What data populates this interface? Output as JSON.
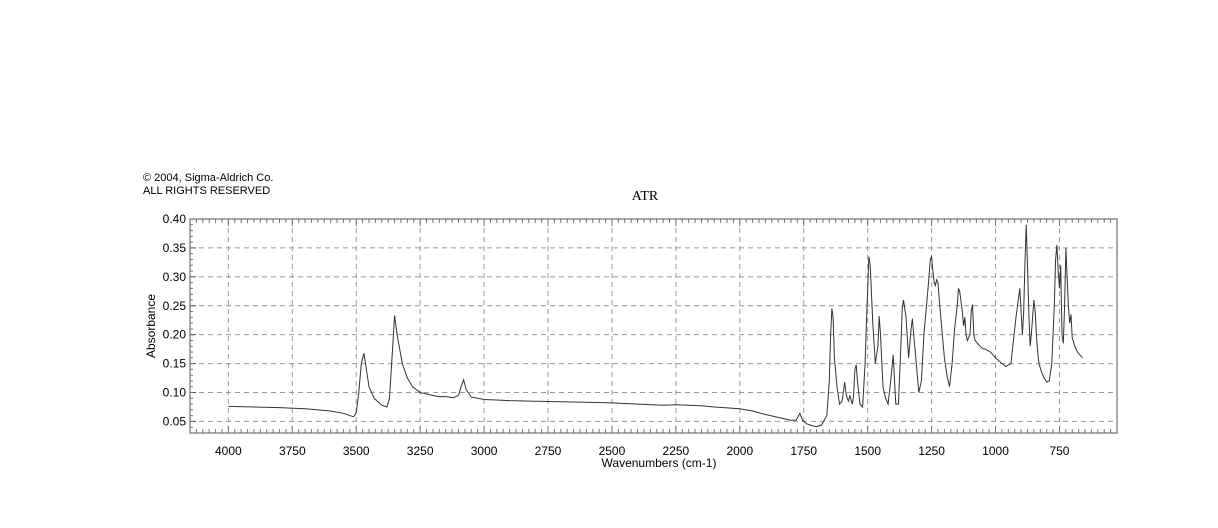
{
  "copyright": {
    "line1": "© 2004, Sigma-Aldrich Co.",
    "line2": "ALL RIGHTS RESERVED"
  },
  "chart_data": {
    "type": "line",
    "title": "ATR",
    "xlabel": "Wavenumbers (cm-1)",
    "ylabel": "Absorbance",
    "xlim": [
      4150,
      525
    ],
    "ylim": [
      0.03,
      0.4
    ],
    "x_ticks": [
      4000,
      3750,
      3500,
      3250,
      3000,
      2750,
      2500,
      2250,
      2000,
      1750,
      1500,
      1250,
      1000,
      750
    ],
    "x_tick_labels": [
      "4000",
      "3750",
      "3500",
      "3250",
      "3000",
      "2750",
      "2500",
      "2250",
      "2000",
      "1750",
      "1500",
      "1250",
      "1000",
      "750"
    ],
    "y_ticks": [
      0.05,
      0.1,
      0.15,
      0.2,
      0.25,
      0.3,
      0.35,
      0.4
    ],
    "y_tick_labels": [
      "0.05",
      "0.10",
      "0.15",
      "0.20",
      "0.25",
      "0.30",
      "0.35",
      "0.40"
    ],
    "grid": true,
    "line_color": "#333333",
    "series": [
      {
        "x": [
          4000,
          3900,
          3800,
          3700,
          3600,
          3550,
          3510,
          3500,
          3490,
          3480,
          3470,
          3460,
          3450,
          3430,
          3400,
          3380,
          3370,
          3360,
          3350,
          3340,
          3320,
          3300,
          3280,
          3250,
          3200,
          3180,
          3150,
          3120,
          3100,
          3090,
          3080,
          3070,
          3050,
          3000,
          2950,
          2900,
          2800,
          2700,
          2600,
          2500,
          2400,
          2300,
          2250,
          2200,
          2150,
          2100,
          2000,
          1950,
          1900,
          1850,
          1800,
          1780,
          1770,
          1765,
          1760,
          1755,
          1750,
          1740,
          1720,
          1700,
          1680,
          1660,
          1650,
          1645,
          1640,
          1635,
          1630,
          1620,
          1610,
          1600,
          1590,
          1585,
          1580,
          1575,
          1570,
          1560,
          1555,
          1550,
          1545,
          1540,
          1530,
          1520,
          1510,
          1505,
          1500,
          1495,
          1490,
          1480,
          1470,
          1460,
          1455,
          1450,
          1440,
          1430,
          1420,
          1410,
          1400,
          1390,
          1380,
          1370,
          1365,
          1360,
          1350,
          1340,
          1330,
          1325,
          1320,
          1310,
          1300,
          1290,
          1280,
          1270,
          1260,
          1255,
          1250,
          1245,
          1240,
          1235,
          1230,
          1225,
          1220,
          1210,
          1200,
          1190,
          1180,
          1170,
          1160,
          1150,
          1145,
          1140,
          1130,
          1125,
          1120,
          1115,
          1110,
          1100,
          1095,
          1090,
          1085,
          1080,
          1070,
          1060,
          1050,
          1040,
          1020,
          1000,
          980,
          960,
          940,
          920,
          905,
          900,
          895,
          890,
          885,
          880,
          875,
          870,
          865,
          860,
          855,
          850,
          845,
          840,
          835,
          830,
          820,
          810,
          800,
          790,
          780,
          770,
          765,
          760,
          755,
          750,
          745,
          740,
          735,
          730,
          725,
          720,
          715,
          710,
          705,
          700,
          690,
          680,
          670,
          660
        ],
        "y": [
          0.076,
          0.075,
          0.074,
          0.072,
          0.068,
          0.064,
          0.058,
          0.065,
          0.1,
          0.15,
          0.168,
          0.14,
          0.11,
          0.09,
          0.078,
          0.075,
          0.09,
          0.16,
          0.233,
          0.2,
          0.15,
          0.125,
          0.11,
          0.1,
          0.095,
          0.093,
          0.093,
          0.091,
          0.095,
          0.11,
          0.122,
          0.105,
          0.092,
          0.088,
          0.087,
          0.086,
          0.085,
          0.084,
          0.083,
          0.082,
          0.08,
          0.078,
          0.079,
          0.078,
          0.077,
          0.075,
          0.072,
          0.068,
          0.062,
          0.057,
          0.052,
          0.052,
          0.06,
          0.064,
          0.058,
          0.052,
          0.05,
          0.046,
          0.043,
          0.041,
          0.044,
          0.06,
          0.12,
          0.2,
          0.245,
          0.23,
          0.16,
          0.11,
          0.08,
          0.085,
          0.118,
          0.1,
          0.09,
          0.085,
          0.095,
          0.08,
          0.095,
          0.14,
          0.148,
          0.12,
          0.08,
          0.075,
          0.15,
          0.22,
          0.28,
          0.335,
          0.32,
          0.22,
          0.15,
          0.18,
          0.232,
          0.2,
          0.11,
          0.09,
          0.08,
          0.12,
          0.165,
          0.08,
          0.08,
          0.18,
          0.245,
          0.26,
          0.23,
          0.16,
          0.21,
          0.228,
          0.2,
          0.15,
          0.1,
          0.12,
          0.2,
          0.25,
          0.3,
          0.33,
          0.335,
          0.31,
          0.29,
          0.285,
          0.295,
          0.29,
          0.26,
          0.21,
          0.16,
          0.13,
          0.11,
          0.15,
          0.21,
          0.25,
          0.28,
          0.275,
          0.24,
          0.215,
          0.23,
          0.2,
          0.19,
          0.2,
          0.24,
          0.252,
          0.2,
          0.19,
          0.185,
          0.18,
          0.176,
          0.175,
          0.17,
          0.16,
          0.152,
          0.145,
          0.15,
          0.23,
          0.28,
          0.24,
          0.2,
          0.24,
          0.32,
          0.39,
          0.32,
          0.24,
          0.18,
          0.2,
          0.23,
          0.26,
          0.24,
          0.2,
          0.17,
          0.15,
          0.135,
          0.125,
          0.118,
          0.12,
          0.15,
          0.25,
          0.33,
          0.355,
          0.31,
          0.28,
          0.32,
          0.2,
          0.185,
          0.25,
          0.35,
          0.3,
          0.25,
          0.22,
          0.235,
          0.195,
          0.18,
          0.17,
          0.165,
          0.16
        ]
      }
    ]
  }
}
